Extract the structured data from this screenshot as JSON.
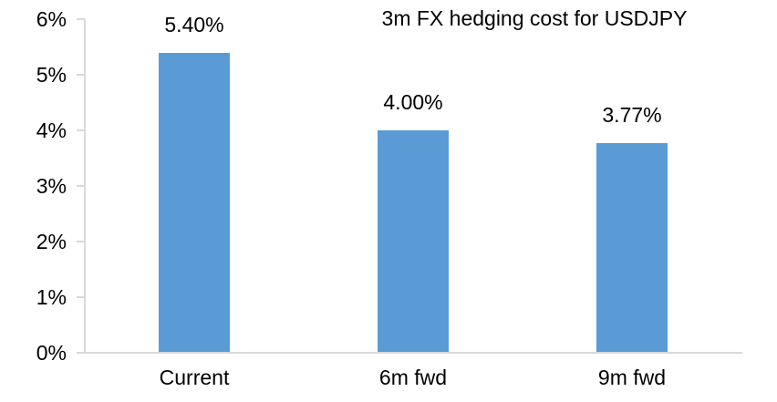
{
  "chart_data": {
    "type": "bar",
    "title": "3m FX hedging cost for USDJPY",
    "categories": [
      "Current",
      "6m fwd",
      "9m fwd"
    ],
    "values": [
      5.4,
      4.0,
      3.77
    ],
    "data_labels": [
      "5.40%",
      "4.00%",
      "3.77%"
    ],
    "xlabel": "",
    "ylabel": "",
    "ylim": [
      0,
      6
    ],
    "y_ticks": [
      {
        "value": 6,
        "label": "6%"
      },
      {
        "value": 5,
        "label": "5%"
      },
      {
        "value": 4,
        "label": "4%"
      },
      {
        "value": 3,
        "label": "3%"
      },
      {
        "value": 2,
        "label": "2%"
      },
      {
        "value": 1,
        "label": "1%"
      },
      {
        "value": 0,
        "label": "0%"
      }
    ],
    "grid": false,
    "legend_position": "none",
    "colors": {
      "bar": "#5B9BD5",
      "axis": "#D9D9D9",
      "text": "#000000",
      "background": "#FFFFFF"
    }
  }
}
